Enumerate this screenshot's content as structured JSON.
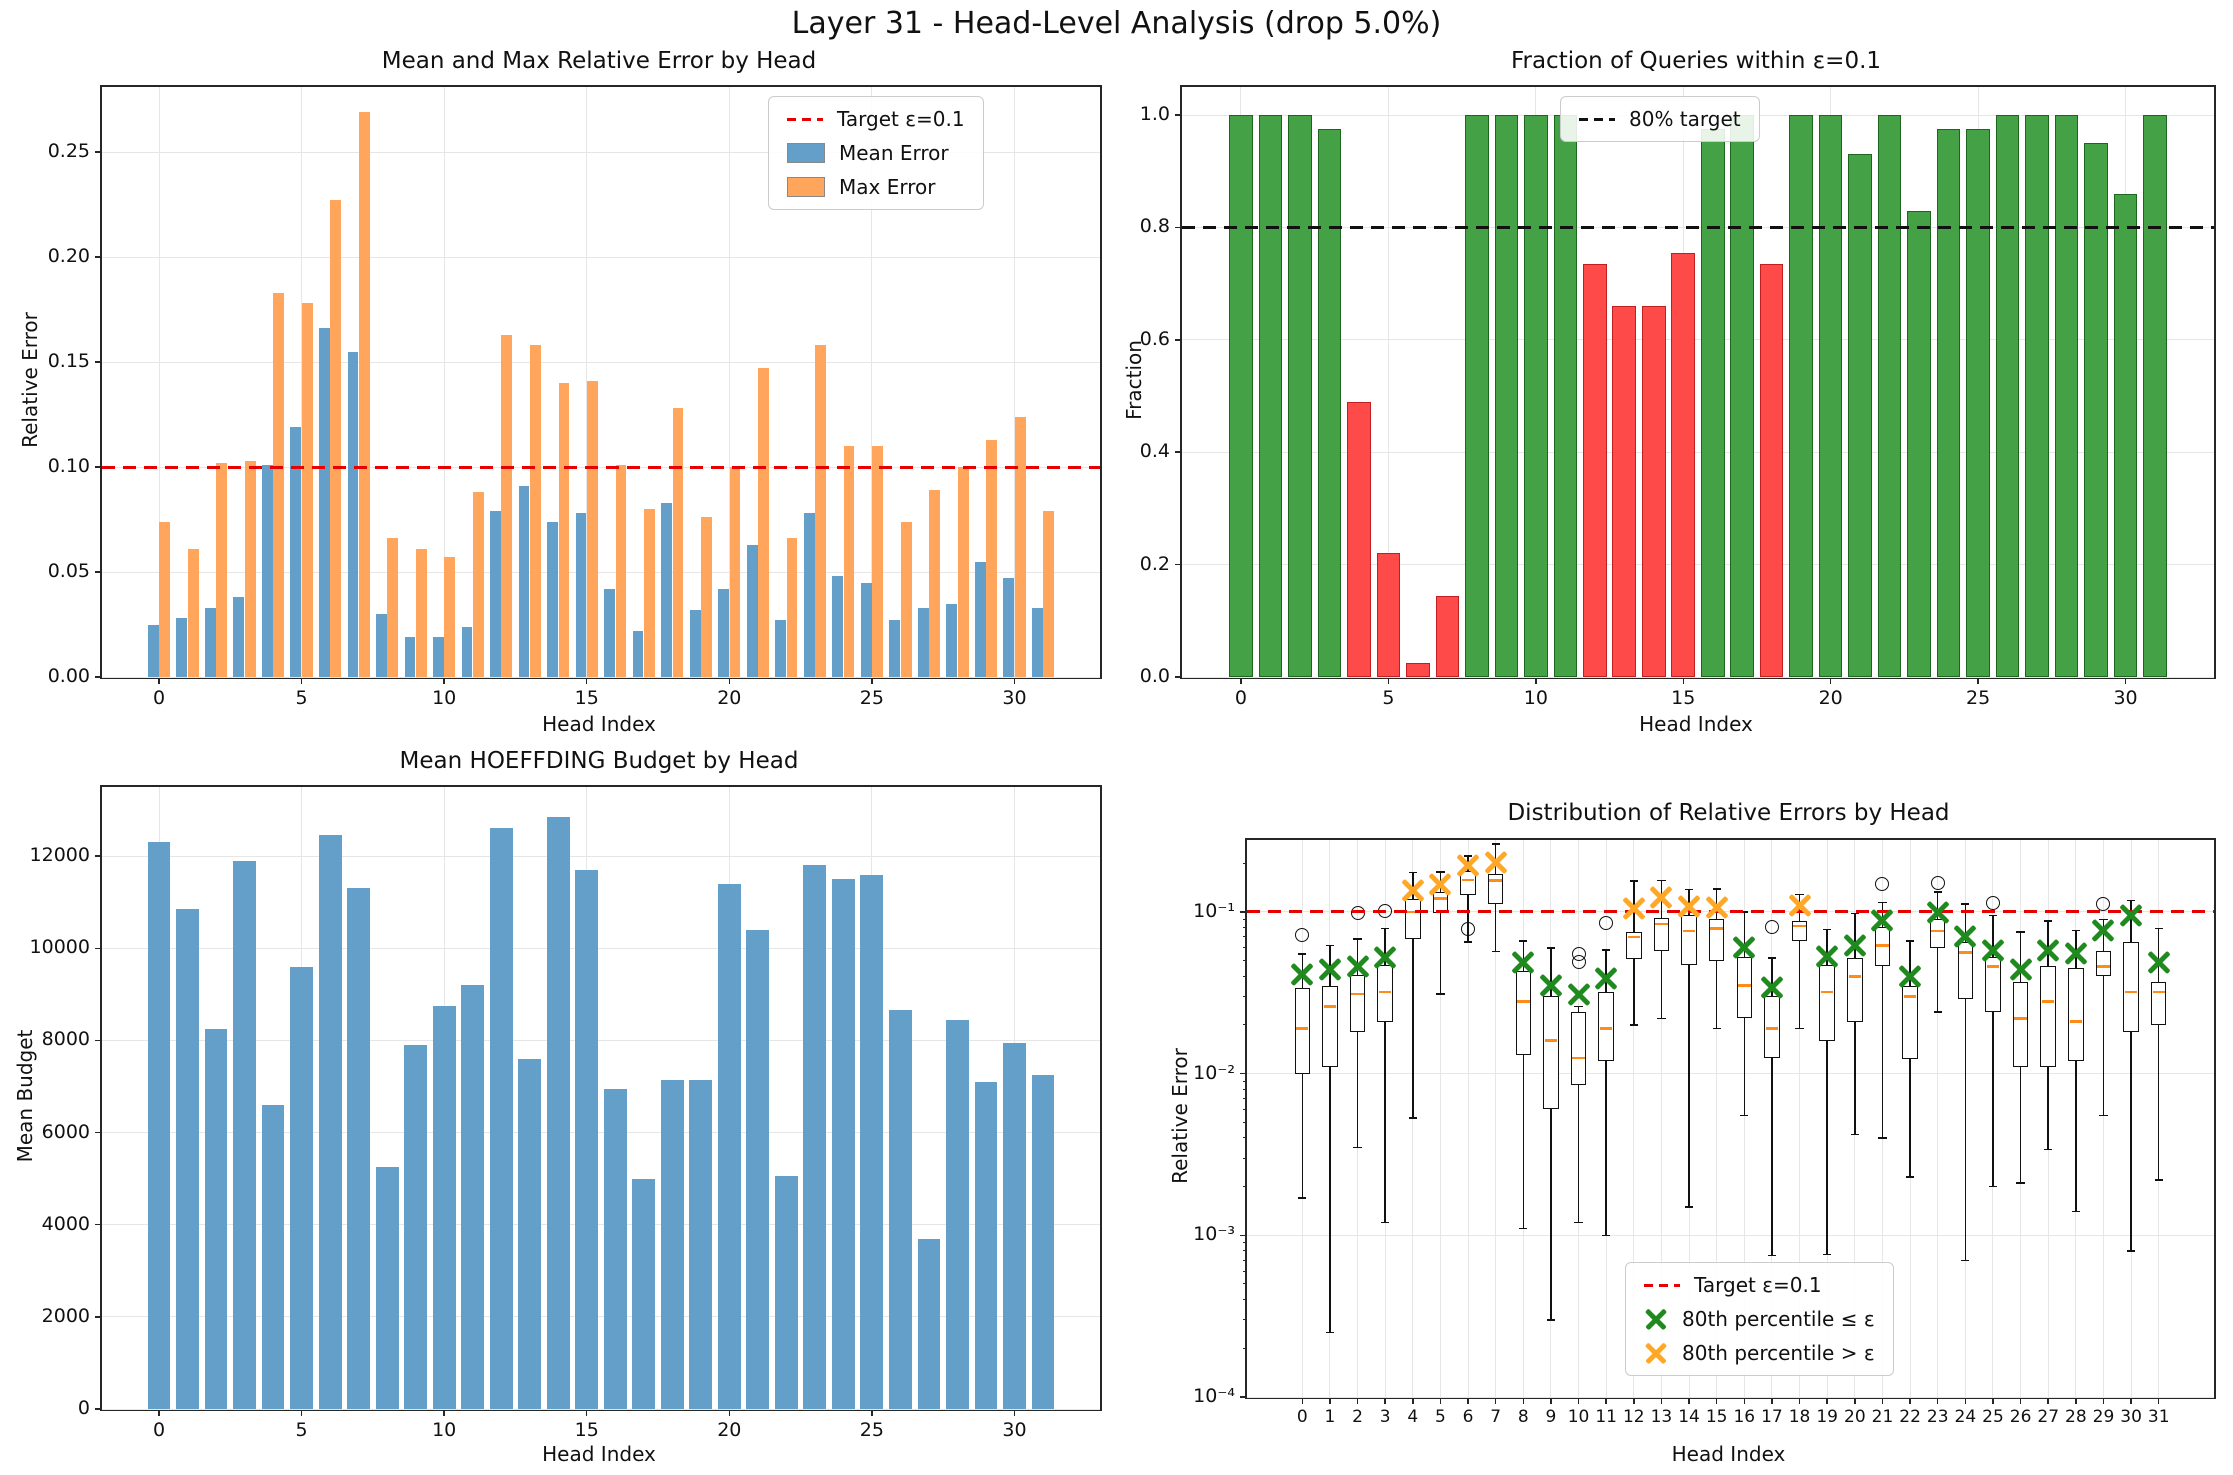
{
  "figure": {
    "title": "Layer 31 - Head-Level Analysis (drop 5.0%)"
  },
  "chart_data": [
    {
      "id": "error_by_head",
      "type": "bar",
      "title": "Mean and Max Relative Error by Head",
      "xlabel": "Head Index",
      "ylabel": "Relative Error",
      "xlim": [
        -2,
        33
      ],
      "ylim": [
        0,
        0.281
      ],
      "grid": true,
      "xtick_vals": [
        0,
        5,
        10,
        15,
        20,
        25,
        30
      ],
      "xtick_labels": [
        "0",
        "5",
        "10",
        "15",
        "20",
        "25",
        "30"
      ],
      "ytick_vals": [
        0.0,
        0.05,
        0.1,
        0.15,
        0.2,
        0.25
      ],
      "ytick_labels": [
        "0.00",
        "0.05",
        "0.10",
        "0.15",
        "0.20",
        "0.25"
      ],
      "target_line": {
        "value": 0.1,
        "color": "#e60000",
        "style": "dashed"
      },
      "legend": [
        {
          "label": "Target ε=0.1",
          "swatch": "dash-red"
        },
        {
          "label": "Mean Error",
          "swatch": "blue-patch"
        },
        {
          "label": "Max Error",
          "swatch": "orange-patch"
        }
      ],
      "legend_position": "upper right",
      "categories": [
        0,
        1,
        2,
        3,
        4,
        5,
        6,
        7,
        8,
        9,
        10,
        11,
        12,
        13,
        14,
        15,
        16,
        17,
        18,
        19,
        20,
        21,
        22,
        23,
        24,
        25,
        26,
        27,
        28,
        29,
        30,
        31
      ],
      "series": [
        {
          "name": "Mean Error",
          "color": "#649fca",
          "values": [
            0.025,
            0.028,
            0.033,
            0.038,
            0.101,
            0.119,
            0.166,
            0.155,
            0.03,
            0.019,
            0.019,
            0.024,
            0.079,
            0.091,
            0.074,
            0.078,
            0.042,
            0.022,
            0.083,
            0.032,
            0.042,
            0.063,
            0.027,
            0.078,
            0.048,
            0.045,
            0.027,
            0.033,
            0.035,
            0.055,
            0.047,
            0.033
          ]
        },
        {
          "name": "Max Error",
          "color": "#ffa65c",
          "values": [
            0.074,
            0.061,
            0.102,
            0.103,
            0.183,
            0.178,
            0.227,
            0.269,
            0.066,
            0.061,
            0.057,
            0.088,
            0.163,
            0.158,
            0.14,
            0.141,
            0.101,
            0.08,
            0.128,
            0.076,
            0.1,
            0.147,
            0.066,
            0.158,
            0.11,
            0.11,
            0.074,
            0.089,
            0.1,
            0.113,
            0.124,
            0.079
          ]
        }
      ]
    },
    {
      "id": "fraction_within_eps",
      "type": "bar",
      "title": "Fraction of Queries within ε=0.1",
      "xlabel": "Head Index",
      "ylabel": "Fraction",
      "xlim": [
        -2,
        33
      ],
      "ylim": [
        0,
        1.05
      ],
      "grid": true,
      "xtick_vals": [
        0,
        5,
        10,
        15,
        20,
        25,
        30
      ],
      "xtick_labels": [
        "0",
        "5",
        "10",
        "15",
        "20",
        "25",
        "30"
      ],
      "ytick_vals": [
        0.0,
        0.2,
        0.4,
        0.6,
        0.8,
        1.0
      ],
      "ytick_labels": [
        "0.0",
        "0.2",
        "0.4",
        "0.6",
        "0.8",
        "1.0"
      ],
      "target_line": {
        "value": 0.8,
        "color": "#111111",
        "style": "dashed"
      },
      "legend": [
        {
          "label": "80% target",
          "swatch": "dash-black"
        }
      ],
      "legend_position": "upper center",
      "threshold": 0.8,
      "pass_color": "#45a145",
      "fail_color": "#ff4a4a",
      "categories": [
        0,
        1,
        2,
        3,
        4,
        5,
        6,
        7,
        8,
        9,
        10,
        11,
        12,
        13,
        14,
        15,
        16,
        17,
        18,
        19,
        20,
        21,
        22,
        23,
        24,
        25,
        26,
        27,
        28,
        29,
        30,
        31
      ],
      "values": [
        1.0,
        1.0,
        1.0,
        0.975,
        0.49,
        0.22,
        0.025,
        0.145,
        1.0,
        1.0,
        1.0,
        1.0,
        0.735,
        0.66,
        0.66,
        0.755,
        0.975,
        1.0,
        0.735,
        1.0,
        1.0,
        0.93,
        1.0,
        0.83,
        0.975,
        0.975,
        1.0,
        1.0,
        1.0,
        0.95,
        0.86,
        1.0
      ]
    },
    {
      "id": "mean_hoeffding_budget",
      "type": "bar",
      "title": "Mean HOEFFDING Budget by Head",
      "xlabel": "Head Index",
      "ylabel": "Mean Budget",
      "xlim": [
        -2,
        33
      ],
      "ylim": [
        0,
        13500
      ],
      "grid": true,
      "xtick_vals": [
        0,
        5,
        10,
        15,
        20,
        25,
        30
      ],
      "xtick_labels": [
        "0",
        "5",
        "10",
        "15",
        "20",
        "25",
        "30"
      ],
      "ytick_vals": [
        0,
        2000,
        4000,
        6000,
        8000,
        10000,
        12000
      ],
      "ytick_labels": [
        "0",
        "2000",
        "4000",
        "6000",
        "8000",
        "10000",
        "12000"
      ],
      "bar_color": "#649fca",
      "categories": [
        0,
        1,
        2,
        3,
        4,
        5,
        6,
        7,
        8,
        9,
        10,
        11,
        12,
        13,
        14,
        15,
        16,
        17,
        18,
        19,
        20,
        21,
        22,
        23,
        24,
        25,
        26,
        27,
        28,
        29,
        30,
        31
      ],
      "values": [
        12300,
        10850,
        8250,
        11900,
        6600,
        9600,
        12450,
        11300,
        5250,
        7900,
        8750,
        9200,
        12600,
        7600,
        12850,
        11700,
        6950,
        5000,
        7150,
        7150,
        11400,
        10400,
        5050,
        11800,
        11500,
        11600,
        8650,
        3700,
        8450,
        7100,
        7950,
        7250
      ]
    },
    {
      "id": "error_distribution",
      "type": "boxplot",
      "title": "Distribution of Relative Errors by Head",
      "xlabel": "Head Index",
      "ylabel": "Relative Error",
      "xlim": [
        -2,
        33
      ],
      "ylog_lim": [
        -4,
        -0.555
      ],
      "grid": true,
      "xtick_vals": [
        0,
        1,
        2,
        3,
        4,
        5,
        6,
        7,
        8,
        9,
        10,
        11,
        12,
        13,
        14,
        15,
        16,
        17,
        18,
        19,
        20,
        21,
        22,
        23,
        24,
        25,
        26,
        27,
        28,
        29,
        30,
        31
      ],
      "xtick_labels": [
        "0",
        "1",
        "2",
        "3",
        "4",
        "5",
        "6",
        "7",
        "8",
        "9",
        "10",
        "11",
        "12",
        "13",
        "14",
        "15",
        "16",
        "17",
        "18",
        "19",
        "20",
        "21",
        "22",
        "23",
        "24",
        "25",
        "26",
        "27",
        "28",
        "29",
        "30",
        "31"
      ],
      "ytick_vals": [
        0.0001,
        0.001,
        0.01,
        0.1
      ],
      "ytick_labels": [
        "10⁻⁴",
        "10⁻³",
        "10⁻²",
        "10⁻¹"
      ],
      "target_line": {
        "value": 0.1,
        "color": "#e60000",
        "style": "dashed"
      },
      "legend": [
        {
          "label": "Target ε=0.1",
          "swatch": "dash-red"
        },
        {
          "label": "80th percentile ≤ ε",
          "swatch": "x-green"
        },
        {
          "label": "80th percentile > ε",
          "swatch": "x-orange"
        }
      ],
      "legend_position": "lower center-right",
      "marker_green": "#1f8b1f",
      "marker_orange": "#ffa726",
      "median_color": "#ff8c1a",
      "boxes": [
        {
          "head": 0,
          "whislo": 0.0017,
          "q1": 0.01,
          "med": 0.019,
          "q3": 0.034,
          "whishi": 0.055,
          "p80": 0.041,
          "flag": "le",
          "outliers": [
            0.072
          ]
        },
        {
          "head": 1,
          "whislo": 0.00025,
          "q1": 0.011,
          "med": 0.026,
          "q3": 0.035,
          "whishi": 0.062,
          "p80": 0.044,
          "flag": "le",
          "outliers": []
        },
        {
          "head": 2,
          "whislo": 0.0035,
          "q1": 0.018,
          "med": 0.031,
          "q3": 0.041,
          "whishi": 0.068,
          "p80": 0.046,
          "flag": "le",
          "outliers": [
            0.098
          ]
        },
        {
          "head": 3,
          "whislo": 0.0012,
          "q1": 0.021,
          "med": 0.032,
          "q3": 0.047,
          "whishi": 0.079,
          "p80": 0.052,
          "flag": "le",
          "outliers": [
            0.101
          ]
        },
        {
          "head": 4,
          "whislo": 0.0053,
          "q1": 0.068,
          "med": 0.1,
          "q3": 0.12,
          "whishi": 0.175,
          "p80": 0.135,
          "flag": "gt",
          "outliers": []
        },
        {
          "head": 5,
          "whislo": 0.031,
          "q1": 0.098,
          "med": 0.121,
          "q3": 0.133,
          "whishi": 0.177,
          "p80": 0.148,
          "flag": "gt",
          "outliers": []
        },
        {
          "head": 6,
          "whislo": 0.065,
          "q1": 0.128,
          "med": 0.158,
          "q3": 0.178,
          "whishi": 0.222,
          "p80": 0.193,
          "flag": "gt",
          "outliers": [
            0.078
          ]
        },
        {
          "head": 7,
          "whislo": 0.057,
          "q1": 0.112,
          "med": 0.157,
          "q3": 0.172,
          "whishi": 0.263,
          "p80": 0.201,
          "flag": "gt",
          "outliers": []
        },
        {
          "head": 8,
          "whislo": 0.0011,
          "q1": 0.013,
          "med": 0.028,
          "q3": 0.043,
          "whishi": 0.066,
          "p80": 0.049,
          "flag": "le",
          "outliers": []
        },
        {
          "head": 9,
          "whislo": 0.0003,
          "q1": 0.006,
          "med": 0.016,
          "q3": 0.03,
          "whishi": 0.06,
          "p80": 0.035,
          "flag": "le",
          "outliers": []
        },
        {
          "head": 10,
          "whislo": 0.0012,
          "q1": 0.0085,
          "med": 0.0125,
          "q3": 0.024,
          "whishi": 0.026,
          "p80": 0.031,
          "flag": "le",
          "outliers": [
            0.049,
            0.055
          ]
        },
        {
          "head": 11,
          "whislo": 0.001,
          "q1": 0.012,
          "med": 0.019,
          "q3": 0.032,
          "whishi": 0.058,
          "p80": 0.039,
          "flag": "le",
          "outliers": [
            0.086
          ]
        },
        {
          "head": 12,
          "whislo": 0.02,
          "q1": 0.051,
          "med": 0.07,
          "q3": 0.075,
          "whishi": 0.155,
          "p80": 0.105,
          "flag": "gt",
          "outliers": []
        },
        {
          "head": 13,
          "whislo": 0.022,
          "q1": 0.057,
          "med": 0.084,
          "q3": 0.092,
          "whishi": 0.157,
          "p80": 0.122,
          "flag": "gt",
          "outliers": []
        },
        {
          "head": 14,
          "whislo": 0.0015,
          "q1": 0.047,
          "med": 0.076,
          "q3": 0.096,
          "whishi": 0.138,
          "p80": 0.108,
          "flag": "gt",
          "outliers": []
        },
        {
          "head": 15,
          "whislo": 0.019,
          "q1": 0.05,
          "med": 0.079,
          "q3": 0.091,
          "whishi": 0.139,
          "p80": 0.106,
          "flag": "gt",
          "outliers": []
        },
        {
          "head": 16,
          "whislo": 0.0055,
          "q1": 0.022,
          "med": 0.035,
          "q3": 0.053,
          "whishi": 0.1,
          "p80": 0.06,
          "flag": "le",
          "outliers": []
        },
        {
          "head": 17,
          "whislo": 0.00075,
          "q1": 0.0125,
          "med": 0.019,
          "q3": 0.03,
          "whishi": 0.052,
          "p80": 0.034,
          "flag": "le",
          "outliers": [
            0.081
          ]
        },
        {
          "head": 18,
          "whislo": 0.019,
          "q1": 0.066,
          "med": 0.082,
          "q3": 0.088,
          "whishi": 0.128,
          "p80": 0.11,
          "flag": "gt",
          "outliers": []
        },
        {
          "head": 19,
          "whislo": 0.00076,
          "q1": 0.016,
          "med": 0.032,
          "q3": 0.047,
          "whishi": 0.078,
          "p80": 0.053,
          "flag": "le",
          "outliers": []
        },
        {
          "head": 20,
          "whislo": 0.0042,
          "q1": 0.021,
          "med": 0.04,
          "q3": 0.052,
          "whishi": 0.098,
          "p80": 0.062,
          "flag": "le",
          "outliers": []
        },
        {
          "head": 21,
          "whislo": 0.004,
          "q1": 0.046,
          "med": 0.062,
          "q3": 0.081,
          "whishi": 0.114,
          "p80": 0.089,
          "flag": "le",
          "outliers": [
            0.148
          ]
        },
        {
          "head": 22,
          "whislo": 0.0023,
          "q1": 0.0124,
          "med": 0.03,
          "q3": 0.035,
          "whishi": 0.066,
          "p80": 0.04,
          "flag": "le",
          "outliers": []
        },
        {
          "head": 23,
          "whislo": 0.024,
          "q1": 0.06,
          "med": 0.076,
          "q3": 0.091,
          "whishi": 0.133,
          "p80": 0.099,
          "flag": "le",
          "outliers": [
            0.15
          ]
        },
        {
          "head": 24,
          "whislo": 0.0007,
          "q1": 0.029,
          "med": 0.056,
          "q3": 0.065,
          "whishi": 0.112,
          "p80": 0.07,
          "flag": "le",
          "outliers": []
        },
        {
          "head": 25,
          "whislo": 0.002,
          "q1": 0.024,
          "med": 0.046,
          "q3": 0.053,
          "whishi": 0.095,
          "p80": 0.058,
          "flag": "le",
          "outliers": [
            0.114
          ]
        },
        {
          "head": 26,
          "whislo": 0.0021,
          "q1": 0.011,
          "med": 0.022,
          "q3": 0.037,
          "whishi": 0.075,
          "p80": 0.044,
          "flag": "le",
          "outliers": []
        },
        {
          "head": 27,
          "whislo": 0.0034,
          "q1": 0.011,
          "med": 0.028,
          "q3": 0.046,
          "whishi": 0.088,
          "p80": 0.058,
          "flag": "le",
          "outliers": []
        },
        {
          "head": 28,
          "whislo": 0.0014,
          "q1": 0.012,
          "med": 0.021,
          "q3": 0.045,
          "whishi": 0.077,
          "p80": 0.055,
          "flag": "le",
          "outliers": []
        },
        {
          "head": 29,
          "whislo": 0.0055,
          "q1": 0.04,
          "med": 0.046,
          "q3": 0.057,
          "whishi": 0.09,
          "p80": 0.077,
          "flag": "le",
          "outliers": [
            0.112
          ]
        },
        {
          "head": 30,
          "whislo": 0.0008,
          "q1": 0.018,
          "med": 0.032,
          "q3": 0.065,
          "whishi": 0.118,
          "p80": 0.095,
          "flag": "le",
          "outliers": []
        },
        {
          "head": 31,
          "whislo": 0.0022,
          "q1": 0.02,
          "med": 0.032,
          "q3": 0.037,
          "whishi": 0.079,
          "p80": 0.049,
          "flag": "le",
          "outliers": []
        }
      ]
    }
  ]
}
